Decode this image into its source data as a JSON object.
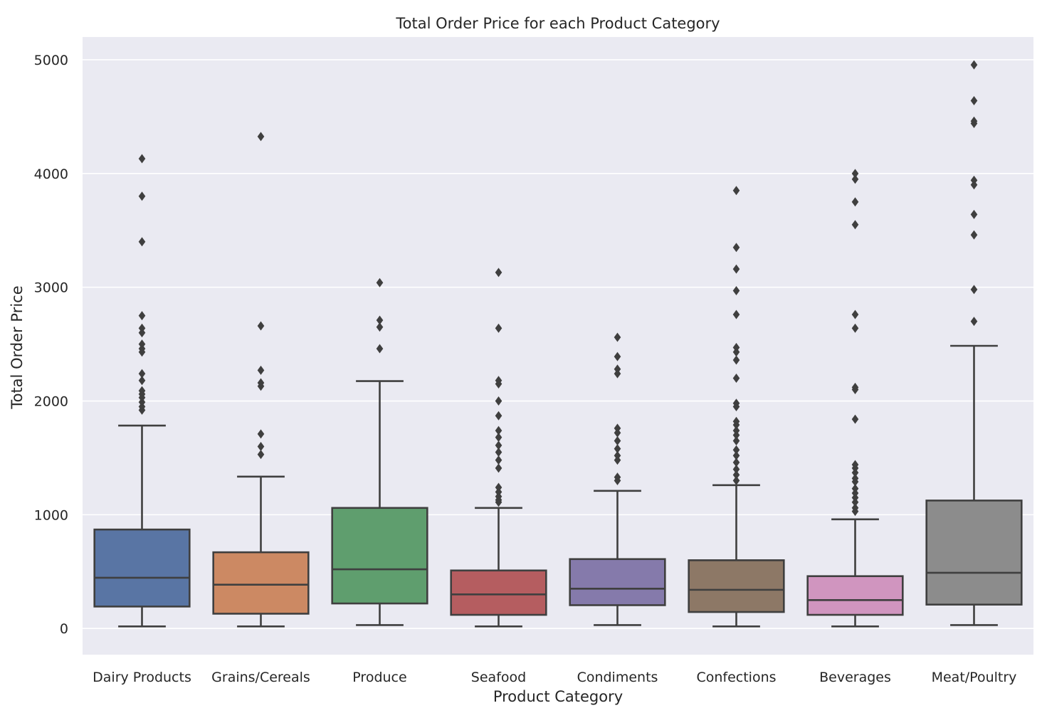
{
  "chart_data": {
    "type": "box",
    "title": "Total Order Price for each Product Category",
    "xlabel": "Product Category",
    "ylabel": "Total Order Price",
    "ylim": [
      -230,
      5200
    ],
    "yticks": [
      0,
      1000,
      2000,
      3000,
      4000,
      5000
    ],
    "grid": true,
    "categories": [
      "Dairy Products",
      "Grains/Cereals",
      "Produce",
      "Seafood",
      "Condiments",
      "Confections",
      "Beverages",
      "Meat/Poultry"
    ],
    "colors": [
      "#5975a4",
      "#cc8963",
      "#5f9e6e",
      "#b55d60",
      "#857aab",
      "#8d7866",
      "#d095bf",
      "#8c8c8c"
    ],
    "boxes": [
      {
        "category": "Dairy Products",
        "whisker_low": 18,
        "q1": 193,
        "median": 446,
        "q3": 870,
        "whisker_high": 1784,
        "outliers": [
          1920,
          1950,
          1990,
          2030,
          2060,
          2090,
          2180,
          2240,
          2430,
          2460,
          2500,
          2600,
          2640,
          2750,
          3400,
          3800,
          4130
        ]
      },
      {
        "category": "Grains/Cereals",
        "whisker_low": 18,
        "q1": 130,
        "median": 385,
        "q3": 670,
        "whisker_high": 1335,
        "outliers": [
          1530,
          1600,
          1710,
          2130,
          2160,
          2270,
          2660,
          4325
        ]
      },
      {
        "category": "Produce",
        "whisker_low": 30,
        "q1": 220,
        "median": 520,
        "q3": 1060,
        "whisker_high": 2175,
        "outliers": [
          2460,
          2650,
          2710,
          3040
        ]
      },
      {
        "category": "Seafood",
        "whisker_low": 18,
        "q1": 120,
        "median": 300,
        "q3": 510,
        "whisker_high": 1060,
        "outliers": [
          1110,
          1130,
          1160,
          1200,
          1240,
          1410,
          1480,
          1550,
          1610,
          1680,
          1740,
          1870,
          2000,
          2150,
          2180,
          2640,
          3130
        ]
      },
      {
        "category": "Condiments",
        "whisker_low": 30,
        "q1": 205,
        "median": 350,
        "q3": 610,
        "whisker_high": 1210,
        "outliers": [
          1300,
          1330,
          1480,
          1520,
          1580,
          1650,
          1720,
          1760,
          2240,
          2280,
          2390,
          2560
        ]
      },
      {
        "category": "Confections",
        "whisker_low": 18,
        "q1": 145,
        "median": 340,
        "q3": 600,
        "whisker_high": 1260,
        "outliers": [
          1300,
          1350,
          1400,
          1460,
          1520,
          1570,
          1650,
          1700,
          1740,
          1790,
          1820,
          1950,
          1980,
          2200,
          2360,
          2430,
          2470,
          2760,
          2970,
          3160,
          3350,
          3850
        ]
      },
      {
        "category": "Beverages",
        "whisker_low": 18,
        "q1": 120,
        "median": 250,
        "q3": 460,
        "whisker_high": 960,
        "outliers": [
          1030,
          1060,
          1110,
          1150,
          1190,
          1230,
          1290,
          1320,
          1370,
          1410,
          1440,
          1840,
          2100,
          2120,
          2640,
          2760,
          3550,
          3750,
          3950,
          4000
        ]
      },
      {
        "category": "Meat/Poultry",
        "whisker_low": 30,
        "q1": 210,
        "median": 490,
        "q3": 1125,
        "whisker_high": 2485,
        "outliers": [
          2700,
          2980,
          3460,
          3640,
          3900,
          3940,
          4440,
          4460,
          4640,
          4955
        ]
      }
    ]
  }
}
